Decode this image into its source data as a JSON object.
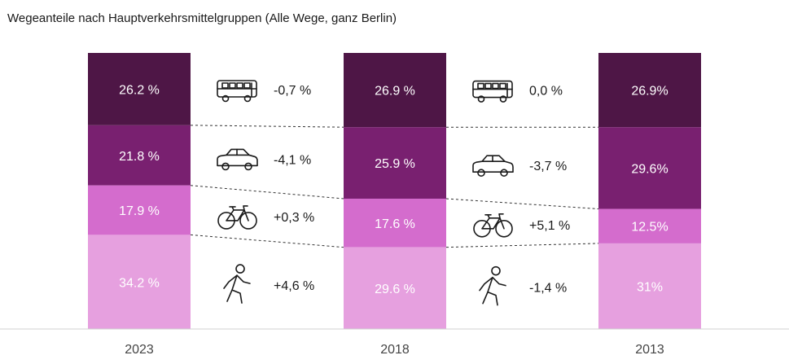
{
  "chart_data": {
    "type": "stacked-bar",
    "title": "Wegeanteile nach Hauptverkehrsmittelgruppen (Alle Wege, ganz Berlin)",
    "categories": [
      "2023",
      "2018",
      "2013"
    ],
    "series": [
      {
        "name": "ÖPNV",
        "icon": "bus-icon",
        "color": "#4e1646",
        "values": [
          26.2,
          26.9,
          26.9
        ],
        "labels": [
          "26.2 %",
          "26.9 %",
          "26.9%"
        ]
      },
      {
        "name": "Auto",
        "icon": "car-icon",
        "color": "#792070",
        "values": [
          21.8,
          25.9,
          29.6
        ],
        "labels": [
          "21.8 %",
          "25.9 %",
          "29.6%"
        ]
      },
      {
        "name": "Rad",
        "icon": "bicycle-icon",
        "color": "#d46ccd",
        "values": [
          17.9,
          17.6,
          12.5
        ],
        "labels": [
          "17.9 %",
          "17.6 %",
          "12.5%"
        ]
      },
      {
        "name": "Fuß",
        "icon": "pedestrian-icon",
        "color": "#e6a0df",
        "values": [
          34.2,
          29.6,
          31
        ],
        "labels": [
          "34.2 %",
          "29.6 %",
          "31%"
        ]
      }
    ],
    "changes": [
      {
        "between": "2023-2018",
        "values": [
          "-0,7 %",
          "-4,1 %",
          "+0,3 %",
          "+4,6 %"
        ]
      },
      {
        "between": "2018-2013",
        "values": [
          "0,0 %",
          "-3,7 %",
          "+5,1 %",
          "-1,4 %"
        ]
      }
    ],
    "ylim": [
      0,
      100
    ]
  }
}
